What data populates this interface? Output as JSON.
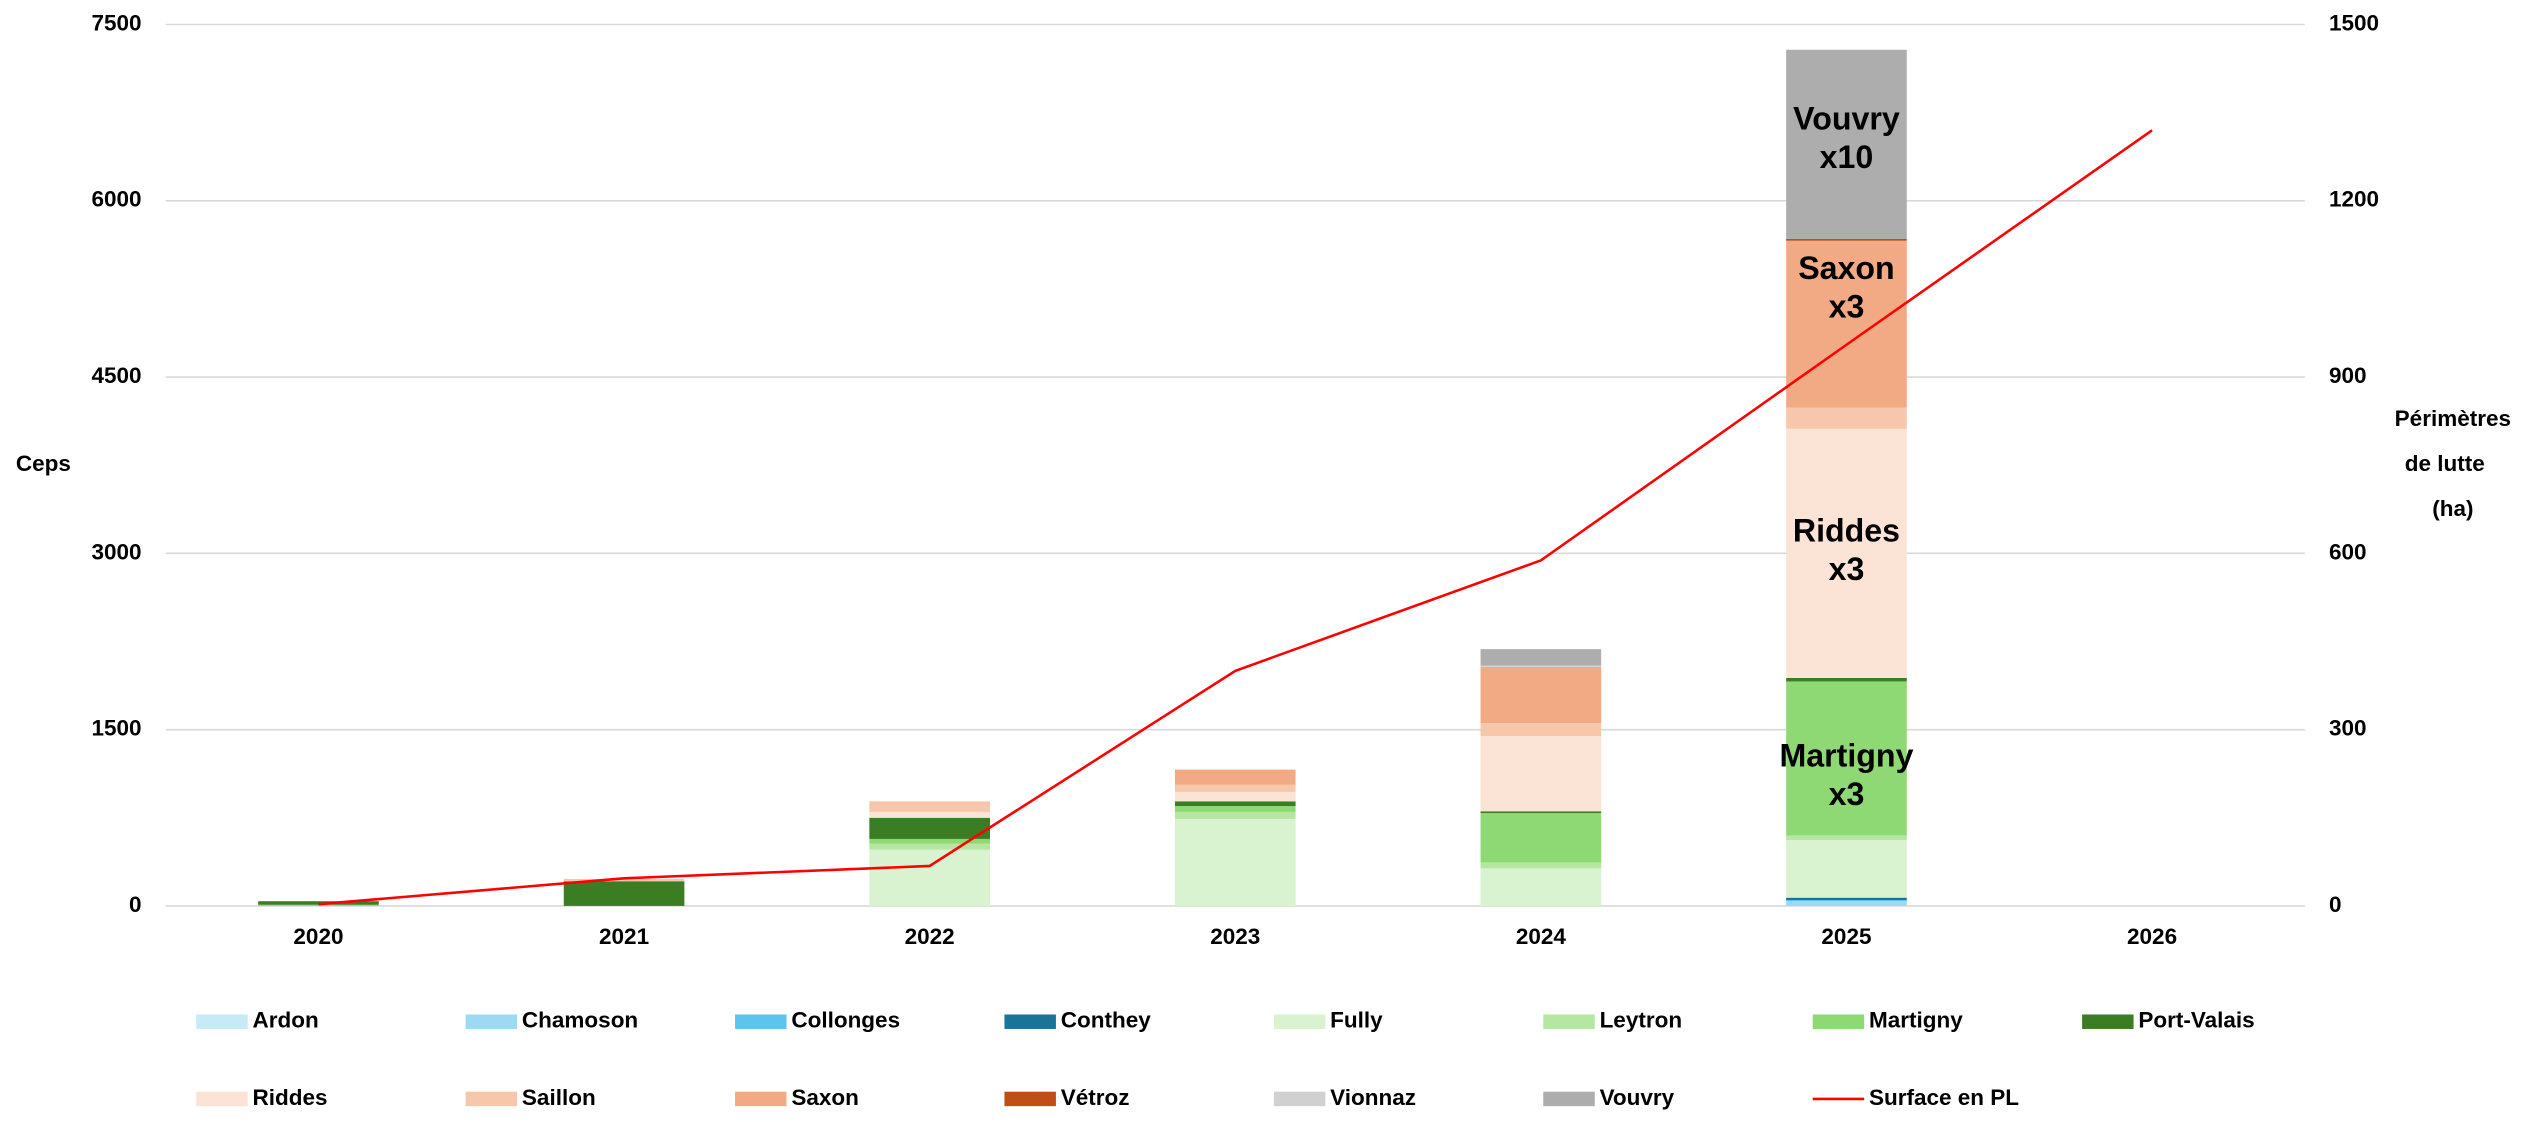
{
  "chart_data": {
    "type": "bar",
    "stacked": true,
    "categories": [
      "2020",
      "2021",
      "2022",
      "2023",
      "2024",
      "2025",
      "2026"
    ],
    "ylabel": "Ceps",
    "y2label": [
      "Périmètres",
      "de lutte",
      "(ha)"
    ],
    "ylim": [
      0,
      7500
    ],
    "yticks": [
      0,
      1500,
      3000,
      4500,
      6000,
      7500
    ],
    "y2lim": [
      0,
      1500
    ],
    "y2ticks": [
      0,
      300,
      600,
      900,
      1200,
      1500
    ],
    "grid": true,
    "legend": "bottom",
    "series": [
      {
        "name": "Ardon",
        "color": "#c6ebf7",
        "values": [
          0,
          0,
          0,
          0,
          0,
          0,
          0
        ]
      },
      {
        "name": "Chamoson",
        "color": "#9dd9f3",
        "values": [
          0,
          0,
          0,
          0,
          0,
          40,
          0
        ]
      },
      {
        "name": "Collonges",
        "color": "#5bc5ee",
        "values": [
          0,
          0,
          0,
          0,
          0,
          10,
          0
        ]
      },
      {
        "name": "Conthey",
        "color": "#1a7499",
        "values": [
          0,
          0,
          0,
          0,
          0,
          20,
          0
        ]
      },
      {
        "name": "Fully",
        "color": "#d9f2d0",
        "values": [
          0,
          0,
          480,
          740,
          320,
          490,
          0
        ]
      },
      {
        "name": "Leytron",
        "color": "#b5e6a2",
        "values": [
          0,
          0,
          50,
          60,
          50,
          40,
          0
        ]
      },
      {
        "name": "Martigny",
        "color": "#8ed973",
        "values": [
          10,
          0,
          40,
          50,
          420,
          1310,
          0
        ]
      },
      {
        "name": "Port-Valais",
        "color": "#3b7d23",
        "values": [
          30,
          210,
          180,
          40,
          15,
          30,
          0
        ]
      },
      {
        "name": "Riddes",
        "color": "#fbe3d6",
        "values": [
          0,
          0,
          50,
          80,
          640,
          2120,
          0
        ]
      },
      {
        "name": "Saillon",
        "color": "#f7c7ac",
        "values": [
          0,
          20,
          90,
          60,
          110,
          180,
          0
        ]
      },
      {
        "name": "Saxon",
        "color": "#f2aa84",
        "values": [
          0,
          0,
          0,
          130,
          480,
          1420,
          0
        ]
      },
      {
        "name": "Vétroz",
        "color": "#c04f15",
        "values": [
          0,
          0,
          0,
          0,
          0,
          15,
          0
        ]
      },
      {
        "name": "Vionnaz",
        "color": "#d0d0d0",
        "values": [
          0,
          0,
          0,
          0,
          10,
          0,
          0
        ]
      },
      {
        "name": "Vouvry",
        "color": "#adadad",
        "values": [
          0,
          0,
          0,
          0,
          140,
          1610,
          0
        ]
      },
      {
        "name": "Surface en PL",
        "color": "#ff0000",
        "type": "line",
        "axis": "y2",
        "values": [
          3,
          47,
          68,
          400,
          588,
          955,
          1320
        ]
      }
    ],
    "annotations": [
      [
        "Vouvry",
        "x10"
      ],
      [
        "Saxon",
        "x3"
      ],
      [
        "Riddes",
        "x3"
      ],
      [
        "Martigny",
        "x3"
      ]
    ]
  }
}
